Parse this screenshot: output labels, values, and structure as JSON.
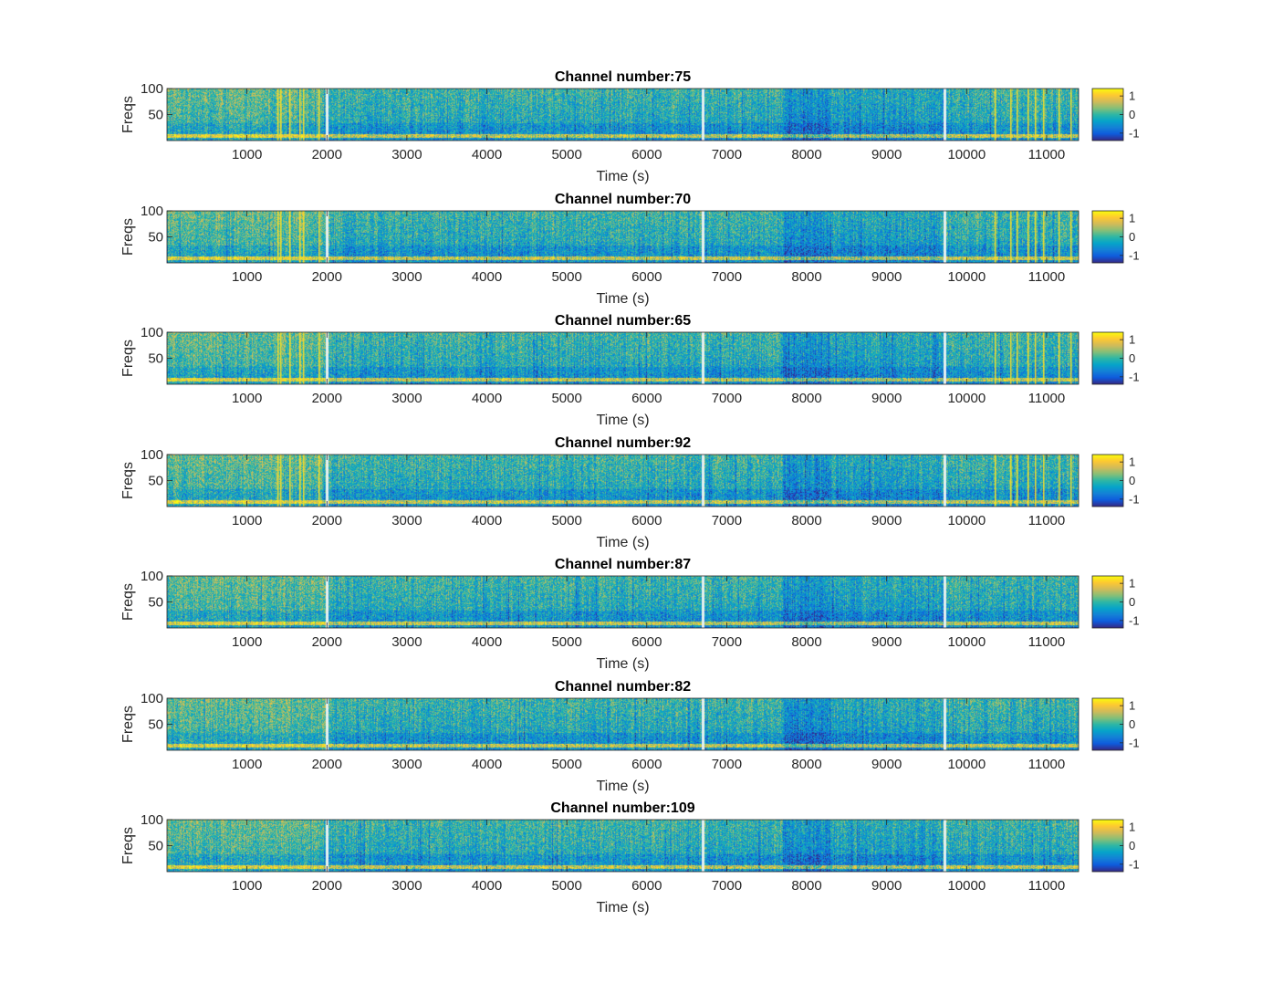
{
  "chart_data": [
    {
      "type": "heatmap",
      "title": "Channel number:75",
      "xlabel": "Time (s)",
      "ylabel": "Freqs",
      "xlim": [
        0,
        11400
      ],
      "ylim": [
        0,
        100
      ],
      "x_ticks": [
        1000,
        2000,
        3000,
        4000,
        5000,
        6000,
        7000,
        8000,
        9000,
        10000,
        11000
      ],
      "y_ticks": [
        50,
        100
      ],
      "colorbar": {
        "ticks": [
          -1,
          0,
          1
        ],
        "range": [
          -1.4,
          1.4
        ],
        "colormap": "parula"
      },
      "gaps_s": [
        2000,
        6700,
        9720
      ],
      "bright_vertical_lines_s": [
        1380,
        1420,
        1530,
        1660,
        1700,
        1890,
        10350,
        10540,
        10620,
        10760,
        10850,
        10950,
        11150,
        11300
      ]
    },
    {
      "type": "heatmap",
      "title": "Channel number:70",
      "xlabel": "Time (s)",
      "ylabel": "Freqs",
      "xlim": [
        0,
        11400
      ],
      "ylim": [
        0,
        100
      ],
      "x_ticks": [
        1000,
        2000,
        3000,
        4000,
        5000,
        6000,
        7000,
        8000,
        9000,
        10000,
        11000
      ],
      "y_ticks": [
        50,
        100
      ],
      "colorbar": {
        "ticks": [
          -1,
          0,
          1
        ],
        "range": [
          -1.4,
          1.4
        ],
        "colormap": "parula"
      },
      "gaps_s": [
        2000,
        6700,
        9720
      ],
      "bright_vertical_lines_s": [
        1380,
        1420,
        1530,
        1660,
        1700,
        1890,
        10350,
        10540,
        10620,
        10760,
        10850,
        10950,
        11150,
        11300
      ]
    },
    {
      "type": "heatmap",
      "title": "Channel number:65",
      "xlabel": "Time (s)",
      "ylabel": "Freqs",
      "xlim": [
        0,
        11400
      ],
      "ylim": [
        0,
        100
      ],
      "x_ticks": [
        1000,
        2000,
        3000,
        4000,
        5000,
        6000,
        7000,
        8000,
        9000,
        10000,
        11000
      ],
      "y_ticks": [
        50,
        100
      ],
      "colorbar": {
        "ticks": [
          -1,
          0,
          1
        ],
        "range": [
          -1.4,
          1.4
        ],
        "colormap": "parula"
      },
      "gaps_s": [
        2000,
        6700,
        9720
      ],
      "bright_vertical_lines_s": [
        1380,
        1420,
        1530,
        1660,
        1700,
        1890,
        10350,
        10540,
        10620,
        10760,
        10850,
        10950,
        11150,
        11300
      ]
    },
    {
      "type": "heatmap",
      "title": "Channel number:92",
      "xlabel": "Time (s)",
      "ylabel": "Freqs",
      "xlim": [
        0,
        11400
      ],
      "ylim": [
        0,
        100
      ],
      "x_ticks": [
        1000,
        2000,
        3000,
        4000,
        5000,
        6000,
        7000,
        8000,
        9000,
        10000,
        11000
      ],
      "y_ticks": [
        50,
        100
      ],
      "colorbar": {
        "ticks": [
          -1,
          0,
          1
        ],
        "range": [
          -1.4,
          1.4
        ],
        "colormap": "parula"
      },
      "gaps_s": [
        2000,
        6700,
        9720
      ],
      "bright_vertical_lines_s": [
        1380,
        1420,
        1530,
        1660,
        1700,
        1890,
        10350,
        10540,
        10620,
        10760,
        10850,
        10950,
        11150,
        11300
      ]
    },
    {
      "type": "heatmap",
      "title": "Channel number:87",
      "xlabel": "Time (s)",
      "ylabel": "Freqs",
      "xlim": [
        0,
        11400
      ],
      "ylim": [
        0,
        100
      ],
      "x_ticks": [
        1000,
        2000,
        3000,
        4000,
        5000,
        6000,
        7000,
        8000,
        9000,
        10000,
        11000
      ],
      "y_ticks": [
        50,
        100
      ],
      "colorbar": {
        "ticks": [
          -1,
          0,
          1
        ],
        "range": [
          -1.4,
          1.4
        ],
        "colormap": "parula"
      },
      "gaps_s": [
        2000,
        6700,
        9720
      ],
      "bright_vertical_lines_s": []
    },
    {
      "type": "heatmap",
      "title": "Channel number:82",
      "xlabel": "Time (s)",
      "ylabel": "Freqs",
      "xlim": [
        0,
        11400
      ],
      "ylim": [
        0,
        100
      ],
      "x_ticks": [
        1000,
        2000,
        3000,
        4000,
        5000,
        6000,
        7000,
        8000,
        9000,
        10000,
        11000
      ],
      "y_ticks": [
        50,
        100
      ],
      "colorbar": {
        "ticks": [
          -1,
          0,
          1
        ],
        "range": [
          -1.4,
          1.4
        ],
        "colormap": "parula"
      },
      "gaps_s": [
        2000,
        6700,
        9720
      ],
      "bright_vertical_lines_s": []
    },
    {
      "type": "heatmap",
      "title": "Channel number:109",
      "xlabel": "Time (s)",
      "ylabel": "Freqs",
      "xlim": [
        0,
        11400
      ],
      "ylim": [
        0,
        100
      ],
      "x_ticks": [
        1000,
        2000,
        3000,
        4000,
        5000,
        6000,
        7000,
        8000,
        9000,
        10000,
        11000
      ],
      "y_ticks": [
        50,
        100
      ],
      "colorbar": {
        "ticks": [
          -1,
          0,
          1
        ],
        "range": [
          -1.4,
          1.4
        ],
        "colormap": "parula"
      },
      "gaps_s": [
        2000,
        6700,
        9720
      ],
      "bright_vertical_lines_s": []
    }
  ],
  "colors": {
    "parula": [
      "#352a87",
      "#0f5cdd",
      "#1481d6",
      "#06a4ca",
      "#2eb7a4",
      "#87bf77",
      "#d1bb59",
      "#fec832",
      "#f9fb0e"
    ],
    "gap": "#e6f0f0",
    "axis": "#262626"
  }
}
